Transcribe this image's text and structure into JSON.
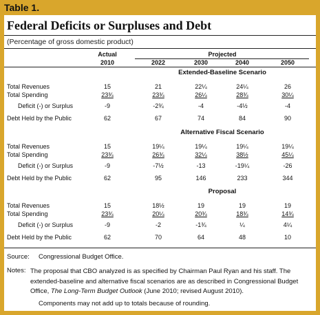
{
  "header": {
    "label": "Table 1.",
    "title": "Federal Deficits or Surpluses and Debt",
    "subtitle": "(Percentage of gross domestic product)"
  },
  "table": {
    "actual_label": "Actual",
    "projected_label": "Projected",
    "columns": [
      "2010",
      "2022",
      "2030",
      "2040",
      "2050"
    ],
    "sections": [
      {
        "title": "Extended-Baseline Scenario",
        "rows": [
          {
            "label": "Total Revenues",
            "values": [
              "15",
              "21",
              "22¼",
              "24¼",
              "26"
            ]
          },
          {
            "label": "Total Spending",
            "values": [
              "23¾",
              "23¾",
              "26¼",
              "28¾",
              "30¼"
            ]
          },
          {
            "label": "Deficit (-) or Surplus",
            "values": [
              "-9",
              "-2¾",
              "-4",
              "-4½",
              "-4"
            ]
          },
          {
            "label": "Debt Held by the Public",
            "values": [
              "62",
              "67",
              "74",
              "84",
              "90"
            ]
          }
        ]
      },
      {
        "title": "Alternative Fiscal Scenario",
        "rows": [
          {
            "label": "Total Revenues",
            "values": [
              "15",
              "19¼",
              "19¼",
              "19¼",
              "19¼"
            ]
          },
          {
            "label": "Total Spending",
            "values": [
              "23¾",
              "26¾",
              "32¼",
              "38½",
              "45¼"
            ]
          },
          {
            "label": "Deficit (-) or Surplus",
            "values": [
              "-9",
              "-7½",
              "-13",
              "-19¼",
              "-26"
            ]
          },
          {
            "label": "Debt Held by the Public",
            "values": [
              "62",
              "95",
              "146",
              "233",
              "344"
            ]
          }
        ]
      },
      {
        "title": "Proposal",
        "rows": [
          {
            "label": "Total Revenues",
            "values": [
              "15",
              "18½",
              "19",
              "19",
              "19"
            ]
          },
          {
            "label": "Total Spending",
            "values": [
              "23¾",
              "20¼",
              "20¾",
              "18¾",
              "14¾"
            ]
          },
          {
            "label": "Deficit (-) or Surplus",
            "values": [
              "-9",
              "-2",
              "-1¾",
              "¼",
              "4¼"
            ]
          },
          {
            "label": "Debt Held by the Public",
            "values": [
              "62",
              "70",
              "64",
              "48",
              "10"
            ]
          }
        ]
      }
    ]
  },
  "footer": {
    "source_label": "Source:",
    "source": "Congressional Budget Office.",
    "notes_label": "Notes:",
    "notes_parts": [
      "The proposal that CBO analyzed is as specified by Chairman Paul Ryan and his staff. The extended-baseline and alternative fiscal scenarios are as described in Congressional Budget Office, ",
      "The Long-Term Budget Outlook",
      " (June 2010; revised August 2010)."
    ],
    "rounding": "Components may not add up to totals because of rounding."
  }
}
